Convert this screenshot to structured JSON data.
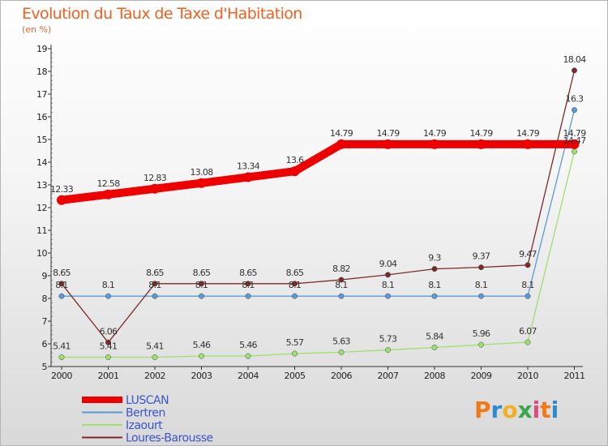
{
  "header": {
    "title": "Evolution du Taux de Taxe d'Habitation",
    "subtitle": "(en %)"
  },
  "logo": {
    "text": "Proxiti",
    "letter_colors": [
      "#f07a1a",
      "#2a8bd0",
      "#f0b020",
      "#3aa84a",
      "#e04a80",
      "#f07a1a",
      "#2a8bd0"
    ]
  },
  "chart_data": {
    "type": "line",
    "title": "Evolution du Taux de Taxe d'Habitation",
    "subtitle": "(en %)",
    "xlabel": "",
    "ylabel": "",
    "categories": [
      "2000",
      "2001",
      "2002",
      "2003",
      "2004",
      "2005",
      "2006",
      "2007",
      "2008",
      "2009",
      "2010",
      "2011"
    ],
    "ylim": [
      5,
      19
    ],
    "yticks": [
      5,
      6,
      7,
      8,
      9,
      10,
      11,
      12,
      13,
      14,
      15,
      16,
      17,
      18,
      19
    ],
    "grid": false,
    "legend_position": "bottom-left",
    "series": [
      {
        "name": "LUSCAN",
        "color": "#ee0000",
        "thick": true,
        "values": [
          12.33,
          12.58,
          12.83,
          13.08,
          13.34,
          13.6,
          14.79,
          14.79,
          14.79,
          14.79,
          14.79,
          14.79
        ],
        "labels": [
          "12.33",
          "12.58",
          "12.83",
          "13.08",
          "13.34",
          "13.6",
          "14.79",
          "14.79",
          "14.79",
          "14.79",
          "14.79",
          "14.79"
        ]
      },
      {
        "name": "Bertren",
        "color": "#5a9ad8",
        "thick": false,
        "values": [
          8.1,
          8.1,
          8.1,
          8.1,
          8.1,
          8.1,
          8.1,
          8.1,
          8.1,
          8.1,
          8.1,
          16.3
        ],
        "labels": [
          "8.1",
          "8.1",
          "8.1",
          "8.1",
          "8.1",
          "8.1",
          "8.1",
          "8.1",
          "8.1",
          "8.1",
          "8.1",
          "16.3"
        ]
      },
      {
        "name": "Izaourt",
        "color": "#9ee070",
        "thick": false,
        "values": [
          5.41,
          5.41,
          5.41,
          5.46,
          5.46,
          5.57,
          5.63,
          5.73,
          5.84,
          5.96,
          6.07,
          14.47
        ],
        "labels": [
          "5.41",
          "5.41",
          "5.41",
          "5.46",
          "5.46",
          "5.57",
          "5.63",
          "5.73",
          "5.84",
          "5.96",
          "6.07",
          "14.47"
        ]
      },
      {
        "name": "Loures-Barousse",
        "color": "#7a2a2a",
        "thick": false,
        "values": [
          8.65,
          6.06,
          8.65,
          8.65,
          8.65,
          8.65,
          8.82,
          9.04,
          9.3,
          9.37,
          9.47,
          18.04
        ],
        "labels": [
          "8.65",
          "6.06",
          "8.65",
          "8.65",
          "8.65",
          "8.65",
          "8.82",
          "9.04",
          "9.3",
          "9.37",
          "9.47",
          "18.04"
        ]
      }
    ]
  }
}
